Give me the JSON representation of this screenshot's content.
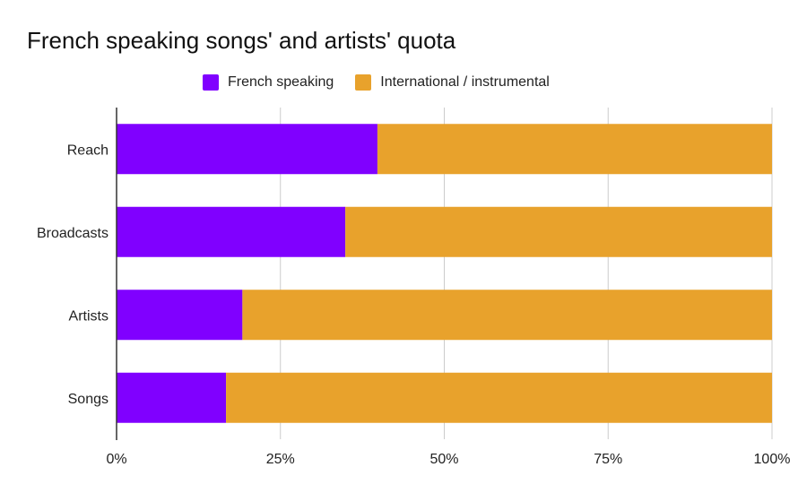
{
  "chart_data": {
    "type": "bar",
    "orientation": "horizontal",
    "stacked": "percent",
    "title": "French speaking songs' and artists' quota",
    "xlabel": "",
    "ylabel": "",
    "categories": [
      "Reach",
      "Broadcasts",
      "Artists",
      "Songs"
    ],
    "series": [
      {
        "name": "French speaking",
        "color": "#8000ff",
        "values": [
          39.8,
          34.9,
          19.2,
          16.7
        ]
      },
      {
        "name": "International / instrumental",
        "color": "#e8a22c",
        "values": [
          60.2,
          65.1,
          80.8,
          83.3
        ]
      }
    ],
    "xlim": [
      0,
      100
    ],
    "xticks": [
      0,
      25,
      50,
      75,
      100
    ],
    "xtick_labels": [
      "0%",
      "25%",
      "50%",
      "75%",
      "100%"
    ],
    "grid": true,
    "legend_position": "top-center"
  }
}
